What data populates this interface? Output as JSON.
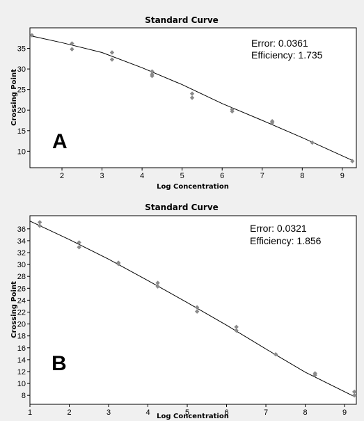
{
  "chart_data": [
    {
      "type": "scatter",
      "title": "Standard Curve",
      "xlabel": "Log Concentration",
      "ylabel": "Crossing Point",
      "panel_letter": "A",
      "error_text": "Error: 0.0361",
      "efficiency_text": "Efficiency: 1.735",
      "xlim": [
        1.2,
        9.35
      ],
      "ylim": [
        6,
        40
      ],
      "x_ticks": [
        2,
        3,
        4,
        5,
        6,
        7,
        8,
        9
      ],
      "y_ticks": [
        10,
        15,
        20,
        25,
        30,
        35
      ],
      "grid": false,
      "points": [
        [
          1.25,
          38.2
        ],
        [
          2.25,
          36.2
        ],
        [
          2.25,
          34.8
        ],
        [
          3.25,
          34.0
        ],
        [
          3.25,
          32.3
        ],
        [
          4.25,
          29.4
        ],
        [
          4.25,
          28.7
        ],
        [
          4.25,
          28.3
        ],
        [
          5.25,
          24.0
        ],
        [
          5.25,
          23.0
        ],
        [
          6.25,
          20.2
        ],
        [
          6.25,
          19.7
        ],
        [
          7.25,
          17.3
        ],
        [
          7.25,
          16.9
        ],
        [
          8.25,
          12.1
        ],
        [
          9.25,
          7.6
        ]
      ],
      "fit_curve": [
        [
          1.2,
          38.1
        ],
        [
          2.0,
          36.4
        ],
        [
          3.0,
          34.0
        ],
        [
          4.0,
          30.3
        ],
        [
          5.0,
          26.2
        ],
        [
          6.0,
          21.6
        ],
        [
          7.0,
          17.5
        ],
        [
          8.0,
          13.3
        ],
        [
          9.25,
          7.8
        ]
      ],
      "colors": {
        "points": "#8a8a8a",
        "line": "#000000",
        "background": "#ffffff"
      }
    },
    {
      "type": "scatter",
      "title": "Standard Curve",
      "xlabel": "Log Concentration",
      "ylabel": "Crossing Point",
      "panel_letter": "B",
      "error_text": "Error: 0.0321",
      "efficiency_text": "Efficiency: 1.856",
      "xlim": [
        1.0,
        9.3
      ],
      "ylim": [
        6.5,
        38.2
      ],
      "x_ticks": [
        1,
        2,
        3,
        4,
        5,
        6,
        7,
        8,
        9
      ],
      "y_ticks": [
        8,
        10,
        12,
        14,
        16,
        18,
        20,
        22,
        24,
        26,
        28,
        30,
        32,
        34,
        36
      ],
      "grid": false,
      "points": [
        [
          1.25,
          37.1
        ],
        [
          1.25,
          36.5
        ],
        [
          2.25,
          33.7
        ],
        [
          2.25,
          32.9
        ],
        [
          3.25,
          30.3
        ],
        [
          3.25,
          30.1
        ],
        [
          4.25,
          26.9
        ],
        [
          4.25,
          26.3
        ],
        [
          5.25,
          22.8
        ],
        [
          5.25,
          22.1
        ],
        [
          6.25,
          19.5
        ],
        [
          6.25,
          18.9
        ],
        [
          7.25,
          14.9
        ],
        [
          8.25,
          11.7
        ],
        [
          8.25,
          11.4
        ],
        [
          9.25,
          8.6
        ],
        [
          9.25,
          8.0
        ]
      ],
      "fit_curve": [
        [
          1.0,
          37.3
        ],
        [
          2.0,
          34.2
        ],
        [
          3.0,
          30.9
        ],
        [
          4.0,
          27.3
        ],
        [
          5.0,
          23.6
        ],
        [
          6.0,
          19.8
        ],
        [
          7.0,
          15.8
        ],
        [
          8.0,
          11.9
        ],
        [
          9.25,
          7.8
        ]
      ],
      "colors": {
        "points": "#8a8a8a",
        "line": "#000000",
        "background": "#ffffff"
      }
    }
  ]
}
